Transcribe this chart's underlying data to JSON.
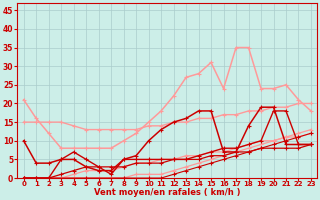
{
  "xlabel": "Vent moyen/en rafales ( km/h )",
  "xlim": [
    -0.5,
    23.5
  ],
  "ylim": [
    0,
    47
  ],
  "yticks": [
    0,
    5,
    10,
    15,
    20,
    25,
    30,
    35,
    40,
    45
  ],
  "xticks": [
    0,
    1,
    2,
    3,
    4,
    5,
    6,
    7,
    8,
    9,
    10,
    11,
    12,
    13,
    14,
    15,
    16,
    17,
    18,
    19,
    20,
    21,
    22,
    23
  ],
  "background_color": "#cceee8",
  "grid_color": "#aacccc",
  "lines": [
    {
      "x": [
        0,
        1,
        2,
        3,
        4,
        5,
        6,
        7,
        8,
        9,
        10,
        11,
        12,
        13,
        14,
        15,
        16,
        17,
        18,
        19,
        20,
        21,
        22,
        23
      ],
      "y": [
        0,
        0,
        0,
        0,
        0,
        0,
        0,
        0,
        0,
        1,
        1,
        1,
        2,
        3,
        4,
        5,
        6,
        7,
        8,
        9,
        10,
        11,
        12,
        13
      ],
      "color": "#ff9999",
      "lw": 0.9
    },
    {
      "x": [
        0,
        1,
        2,
        3,
        4,
        5,
        6,
        7,
        8,
        9,
        10,
        11,
        12,
        13,
        14,
        15,
        16,
        17,
        18,
        19,
        20,
        21,
        22,
        23
      ],
      "y": [
        0,
        0,
        0,
        0,
        1,
        2,
        2,
        2,
        3,
        4,
        4,
        5,
        5,
        6,
        6,
        7,
        7,
        8,
        9,
        10,
        10,
        11,
        11,
        12
      ],
      "color": "#ff9999",
      "lw": 0.9
    },
    {
      "x": [
        0,
        1,
        2,
        3,
        4,
        5,
        6,
        7,
        8,
        9,
        10,
        11,
        12,
        13,
        14,
        15,
        16,
        17,
        18,
        19,
        20,
        21,
        22,
        23
      ],
      "y": [
        15,
        15,
        15,
        15,
        14,
        13,
        13,
        13,
        13,
        13,
        14,
        14,
        15,
        15,
        16,
        16,
        17,
        17,
        18,
        18,
        19,
        19,
        20,
        20
      ],
      "color": "#ff9999",
      "lw": 1.0
    },
    {
      "x": [
        0,
        1,
        2,
        3,
        4,
        5,
        6,
        7,
        8,
        9,
        10,
        11,
        12,
        13,
        14,
        15,
        16,
        17,
        18,
        19,
        20,
        21,
        22,
        23
      ],
      "y": [
        21,
        16,
        12,
        8,
        8,
        8,
        8,
        8,
        10,
        12,
        15,
        18,
        22,
        27,
        28,
        31,
        24,
        35,
        35,
        24,
        24,
        25,
        21,
        18
      ],
      "color": "#ff9999",
      "lw": 1.1
    },
    {
      "x": [
        0,
        2,
        5,
        8,
        10,
        11,
        12,
        13,
        14,
        15,
        16,
        17,
        18,
        19,
        20,
        21,
        22,
        23
      ],
      "y": [
        0,
        0,
        0,
        0,
        0,
        0,
        1,
        2,
        3,
        4,
        5,
        6,
        7,
        8,
        9,
        10,
        11,
        12
      ],
      "color": "#cc0000",
      "lw": 0.8
    },
    {
      "x": [
        0,
        1,
        2,
        3,
        4,
        5,
        6,
        7,
        8,
        9,
        10,
        11,
        12,
        13,
        14,
        15,
        16,
        17,
        18,
        19,
        20,
        21,
        22,
        23
      ],
      "y": [
        0,
        0,
        0,
        1,
        2,
        3,
        3,
        3,
        3,
        4,
        4,
        4,
        5,
        5,
        5,
        6,
        6,
        7,
        7,
        8,
        8,
        8,
        8,
        9
      ],
      "color": "#cc0000",
      "lw": 0.9
    },
    {
      "x": [
        0,
        1,
        2,
        3,
        4,
        5,
        6,
        7,
        8,
        9,
        10,
        11,
        12,
        13,
        14,
        15,
        16,
        17,
        18,
        19,
        20,
        21,
        22,
        23
      ],
      "y": [
        10,
        4,
        4,
        5,
        5,
        3,
        2,
        2,
        5,
        6,
        10,
        13,
        15,
        16,
        18,
        18,
        7,
        7,
        14,
        19,
        19,
        9,
        9,
        9
      ],
      "color": "#cc0000",
      "lw": 1.1
    },
    {
      "x": [
        0,
        1,
        2,
        3,
        4,
        5,
        6,
        7,
        8,
        9,
        10,
        11,
        12,
        13,
        14,
        15,
        16,
        17,
        18,
        19,
        20,
        21,
        22,
        23
      ],
      "y": [
        0,
        0,
        0,
        5,
        7,
        5,
        3,
        1,
        5,
        5,
        5,
        5,
        5,
        5,
        6,
        7,
        8,
        8,
        9,
        10,
        18,
        18,
        9,
        9
      ],
      "color": "#cc0000",
      "lw": 1.0
    }
  ],
  "marker": "+",
  "markersize": 3.5
}
